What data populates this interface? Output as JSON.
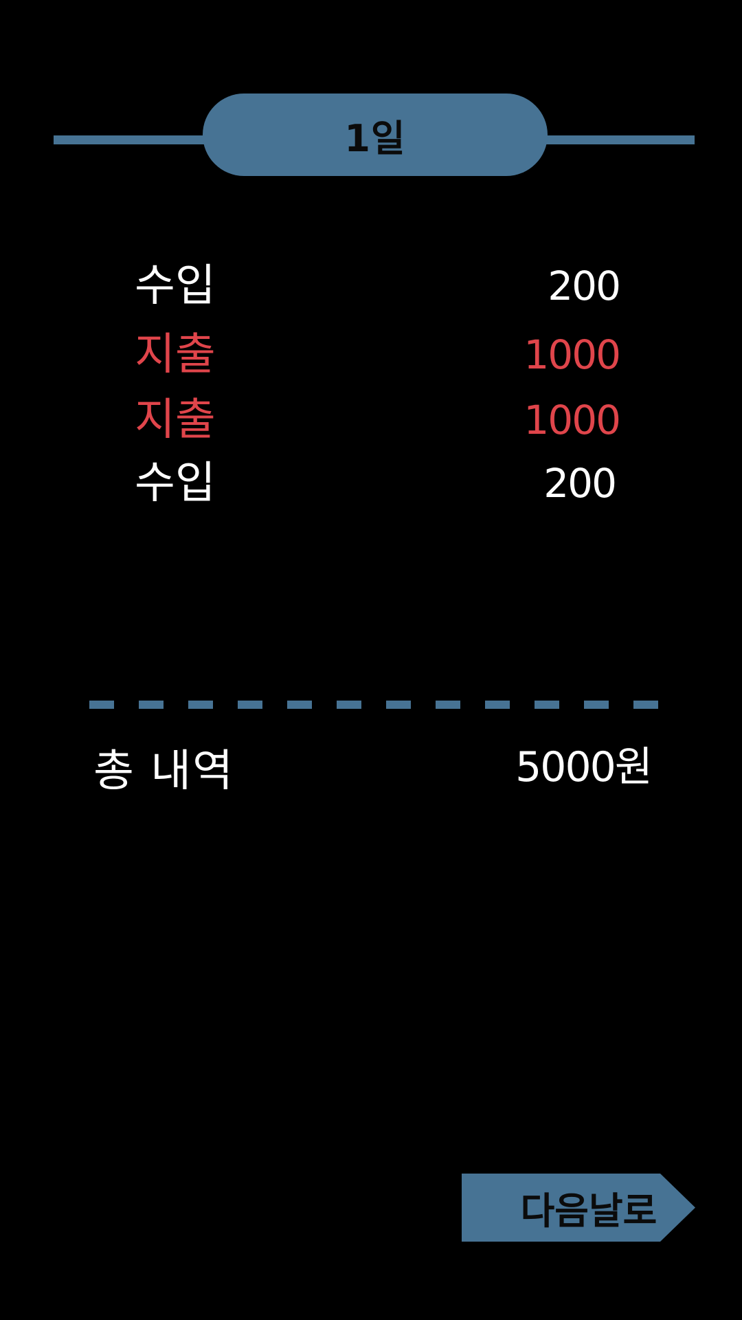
{
  "header": {
    "day_label": "1일"
  },
  "transactions": [
    {
      "type": "income",
      "label": "수입",
      "amount": "200"
    },
    {
      "type": "expense",
      "label": "지출",
      "amount": "1000"
    },
    {
      "type": "expense",
      "label": "지출",
      "amount": "1000"
    },
    {
      "type": "income",
      "label": "수입",
      "amount": "200"
    }
  ],
  "total": {
    "label": "총 내역",
    "value": "5000원"
  },
  "next_button": {
    "label": "다음날로"
  },
  "colors": {
    "background": "#000000",
    "accent": "#477394",
    "income_text": "#ffffff",
    "expense_text": "#e0454b"
  }
}
